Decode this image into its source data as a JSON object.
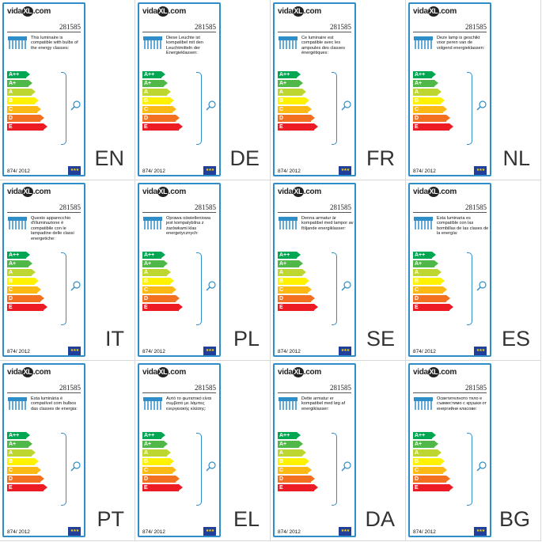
{
  "brand": {
    "prefix": "vida",
    "mark": "XL",
    "suffix": ".com"
  },
  "model_number": "281585",
  "regulation": "874/ 2012",
  "eu_flag_symbol": "★★★",
  "energy_classes": [
    "A++",
    "A+",
    "A",
    "B",
    "C",
    "D",
    "E"
  ],
  "class_colors": [
    "#00a651",
    "#50b848",
    "#bed630",
    "#fff200",
    "#fdb913",
    "#f37021",
    "#ed1c24"
  ],
  "labels": [
    {
      "lang": "EN",
      "text": "This luminaire is compatible with bulbs of the energy classes:"
    },
    {
      "lang": "DE",
      "text": "Diese Leuchte ist kompatibel mit den Leuchtmitteln der Energieklassen:"
    },
    {
      "lang": "FR",
      "text": "Ce luminaire est compatible avec les ampoules des classes énergétiques:"
    },
    {
      "lang": "NL",
      "text": "Deze lamp is geschikt voor peren van de volgend energieklassen:"
    },
    {
      "lang": "IT",
      "text": "Questo apparecchio d'illuminazione è compatibile con le lampadine delle classi energetiche:"
    },
    {
      "lang": "PL",
      "text": "Oprawa oświetleniowa jest kompatybilna z żarówkami klas energetycznych:"
    },
    {
      "lang": "SE",
      "text": "Denna armatur är kompatibel med lampor av följande energiklasser:"
    },
    {
      "lang": "ES",
      "text": "Esta luminaria es compatible con las bombillas de las clases de la energía:"
    },
    {
      "lang": "PT",
      "text": "Esta luminária é compatível com bulbos das classes de energia:"
    },
    {
      "lang": "EL",
      "text": "Αυτό το φωτιστικό είναι συμβατό με λάμπες ενεργειακής κλάσης:"
    },
    {
      "lang": "DA",
      "text": "Dette armatur er kompatibel med løg af energiklasser:"
    },
    {
      "lang": "BG",
      "text": "Осветителното тяло е съвместимо с крушки от енергийни класове:"
    }
  ]
}
